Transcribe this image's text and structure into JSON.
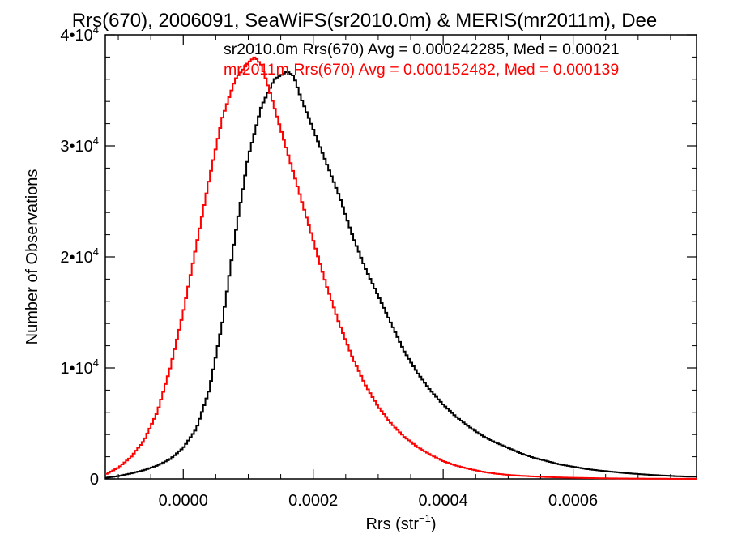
{
  "chart_data": {
    "type": "line",
    "title": "Rrs(670), 2006091, SeaWiFS(sr2010.0m) & MERIS(mr2011m), Dee",
    "xlabel": "Rrs (str",
    "xlabel_exp": "−1",
    "xlabel_close": ")",
    "ylabel": "Number of Observations",
    "xlim": [
      -0.00012,
      0.00079
    ],
    "ylim": [
      0,
      40000
    ],
    "grid": false,
    "x_ticks": [
      {
        "value": 0.0,
        "label": "0.0000"
      },
      {
        "value": 0.0002,
        "label": "0.0002"
      },
      {
        "value": 0.0004,
        "label": "0.0004"
      },
      {
        "value": 0.0006,
        "label": "0.0006"
      }
    ],
    "y_ticks": [
      {
        "value": 0,
        "label": "0",
        "exp": ""
      },
      {
        "value": 10000,
        "label": "1•10",
        "exp": "4"
      },
      {
        "value": 20000,
        "label": "2•10",
        "exp": "4"
      },
      {
        "value": 30000,
        "label": "3•10",
        "exp": "4"
      },
      {
        "value": 40000,
        "label": "4•10",
        "exp": "4"
      }
    ],
    "series": [
      {
        "name": "sr2010.0m",
        "color": "#000000",
        "annotation": "sr2010.0m Rrs(670) Avg = 0.000242285, Med = 0.00021",
        "x": [
          -0.00012,
          -0.0001,
          -8e-05,
          -6e-05,
          -4e-05,
          -2e-05,
          0.0,
          2e-05,
          4e-05,
          6e-05,
          8e-05,
          0.0001,
          0.00012,
          0.00014,
          0.00016,
          0.00017,
          0.00018,
          0.00019,
          0.0002,
          0.00022,
          0.00024,
          0.00026,
          0.00028,
          0.0003,
          0.00032,
          0.00034,
          0.00036,
          0.00038,
          0.0004,
          0.00042,
          0.00044,
          0.00046,
          0.00048,
          0.0005,
          0.00052,
          0.00054,
          0.00056,
          0.00058,
          0.0006,
          0.00062,
          0.00064,
          0.00066,
          0.00068,
          0.0007,
          0.00072,
          0.00074,
          0.00076,
          0.00078
        ],
        "y": [
          100,
          250,
          500,
          800,
          1200,
          1800,
          2800,
          4500,
          8000,
          14000,
          22000,
          29000,
          33500,
          36000,
          36700,
          36300,
          34500,
          33000,
          31500,
          28500,
          25500,
          22000,
          19000,
          16500,
          14000,
          11500,
          9600,
          8000,
          6700,
          5600,
          4700,
          3900,
          3300,
          2800,
          2300,
          1900,
          1600,
          1300,
          1100,
          900,
          760,
          640,
          530,
          440,
          360,
          300,
          240,
          200
        ]
      },
      {
        "name": "mr2011m",
        "color": "#ff0000",
        "annotation": "mr2011m Rrs(670) Avg = 0.000152482, Med = 0.000139",
        "x": [
          -0.00012,
          -0.0001,
          -8e-05,
          -6e-05,
          -4e-05,
          -2e-05,
          0.0,
          2e-05,
          4e-05,
          6e-05,
          8e-05,
          0.0001,
          0.00011,
          0.00012,
          0.00013,
          0.00014,
          0.00016,
          0.00018,
          0.0002,
          0.00022,
          0.00024,
          0.00026,
          0.00028,
          0.0003,
          0.00032,
          0.00034,
          0.00036,
          0.00038,
          0.0004,
          0.00042,
          0.00044,
          0.00046,
          0.00048,
          0.0005,
          0.00052,
          0.00054,
          0.00056,
          0.00058,
          0.0006,
          0.00062,
          0.00064,
          0.00066,
          0.00068,
          0.0007,
          0.00072,
          0.00074,
          0.00076,
          0.00078
        ],
        "y": [
          400,
          1000,
          2000,
          3500,
          6000,
          10000,
          15000,
          21000,
          27000,
          32500,
          36000,
          37500,
          38000,
          37300,
          35500,
          33500,
          29500,
          25500,
          21500,
          17500,
          14000,
          11000,
          8500,
          6500,
          5000,
          3800,
          2900,
          2200,
          1600,
          1200,
          900,
          650,
          480,
          360,
          280,
          220,
          170,
          130,
          100,
          80,
          60,
          45,
          35,
          25,
          20,
          15,
          10,
          5
        ]
      }
    ]
  }
}
